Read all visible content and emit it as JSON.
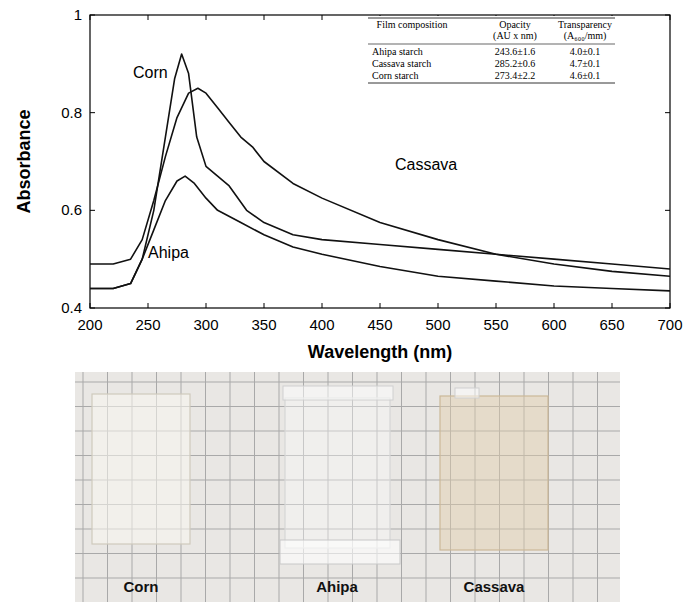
{
  "chart_data": {
    "type": "line",
    "x_label": "Wavelength (nm)",
    "y_label": "Absorbance",
    "xlim": [
      200,
      700
    ],
    "ylim": [
      0.4,
      1
    ],
    "xticks": [
      200,
      250,
      300,
      350,
      400,
      450,
      500,
      550,
      600,
      650,
      700
    ],
    "yticks": [
      0.4,
      0.6,
      0.8,
      1
    ],
    "grid": false,
    "series": [
      {
        "name": "Corn",
        "color": "#111111",
        "line_style": "solid",
        "x": [
          200,
          220,
          235,
          245,
          255,
          265,
          273,
          279,
          285,
          292,
          300,
          310,
          320,
          335,
          350,
          375,
          400,
          450,
          500,
          550,
          600,
          650,
          700
        ],
        "values": [
          0.44,
          0.44,
          0.45,
          0.5,
          0.6,
          0.75,
          0.87,
          0.92,
          0.88,
          0.75,
          0.69,
          0.67,
          0.65,
          0.6,
          0.575,
          0.55,
          0.54,
          0.53,
          0.52,
          0.51,
          0.5,
          0.49,
          0.48
        ]
      },
      {
        "name": "Cassava",
        "color": "#111111",
        "line_style": "solid",
        "x": [
          200,
          220,
          235,
          245,
          255,
          265,
          275,
          285,
          293,
          300,
          310,
          320,
          330,
          340,
          350,
          375,
          400,
          450,
          500,
          550,
          600,
          650,
          700
        ],
        "values": [
          0.49,
          0.49,
          0.5,
          0.54,
          0.62,
          0.71,
          0.79,
          0.84,
          0.85,
          0.84,
          0.81,
          0.78,
          0.75,
          0.73,
          0.7,
          0.655,
          0.625,
          0.575,
          0.54,
          0.51,
          0.49,
          0.475,
          0.465
        ]
      },
      {
        "name": "Ahipa",
        "color": "#111111",
        "line_style": "solid",
        "x": [
          200,
          220,
          235,
          245,
          255,
          265,
          275,
          282,
          290,
          300,
          310,
          330,
          350,
          375,
          400,
          450,
          500,
          550,
          600,
          650,
          700
        ],
        "values": [
          0.44,
          0.44,
          0.45,
          0.5,
          0.56,
          0.62,
          0.66,
          0.67,
          0.655,
          0.625,
          0.6,
          0.575,
          0.55,
          0.525,
          0.51,
          0.485,
          0.465,
          0.455,
          0.445,
          0.44,
          0.435
        ]
      }
    ],
    "table": {
      "header": [
        [
          "Film composition"
        ],
        [
          "Opacity",
          "(AU x nm)"
        ],
        [
          "Transparency",
          "(A₆₀₀/mm)"
        ]
      ],
      "rows": [
        [
          "Ahipa starch",
          "243.6±1.6",
          "4.0±0.1"
        ],
        [
          "Cassava starch",
          "285.2±0.6",
          "4.7±0.1"
        ],
        [
          "Corn starch",
          "273.4±2.2",
          "4.6±0.1"
        ]
      ]
    },
    "photo": {
      "labels": [
        "Corn",
        "Ahipa",
        "Cassava"
      ]
    }
  }
}
